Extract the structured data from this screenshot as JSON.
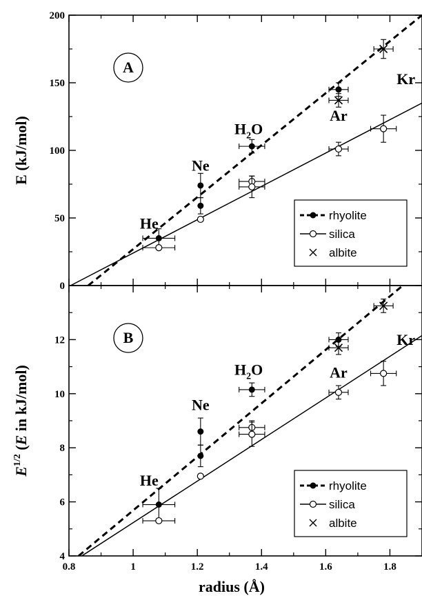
{
  "chart_data": [
    {
      "type": "scatter",
      "panel_label": "A",
      "ylabel": "E  (kJ/mol)",
      "xlim": [
        0.8,
        1.9
      ],
      "ylim": [
        0,
        200
      ],
      "yticks": [
        "0",
        "50",
        "100",
        "150",
        "200"
      ],
      "series": [
        {
          "name": "rhyolite",
          "marker": "filled-circle",
          "line": "dashed",
          "points": [
            {
              "x": 1.08,
              "y": 35,
              "xerr": 0.05,
              "yerr": 7
            },
            {
              "x": 1.21,
              "y": 59,
              "xerr": 0.0,
              "yerr": 6
            },
            {
              "x": 1.21,
              "y": 74,
              "xerr": 0.0,
              "yerr": 9
            },
            {
              "x": 1.37,
              "y": 103,
              "xerr": 0.04,
              "yerr": 5
            },
            {
              "x": 1.64,
              "y": 145,
              "xerr": 0.03,
              "yerr": 5
            }
          ],
          "fit": [
            [
              0.86,
              0
            ],
            [
              1.9,
              200
            ]
          ]
        },
        {
          "name": "silica",
          "marker": "open-circle",
          "line": "solid",
          "points": [
            {
              "x": 1.08,
              "y": 28,
              "xerr": 0.05,
              "yerr": 0
            },
            {
              "x": 1.21,
              "y": 49,
              "xerr": 0.0,
              "yerr": 1
            },
            {
              "x": 1.37,
              "y": 77,
              "xerr": 0.04,
              "yerr": 4
            },
            {
              "x": 1.37,
              "y": 73,
              "xerr": 0.04,
              "yerr": 8
            },
            {
              "x": 1.64,
              "y": 101,
              "xerr": 0.03,
              "yerr": 5
            },
            {
              "x": 1.78,
              "y": 116,
              "xerr": 0.04,
              "yerr": 10
            }
          ],
          "fit": [
            [
              0.805,
              0
            ],
            [
              1.9,
              135
            ]
          ]
        },
        {
          "name": "albite",
          "marker": "cross",
          "line": "none",
          "points": [
            {
              "x": 1.64,
              "y": 137,
              "xerr": 0.03,
              "yerr": 5
            },
            {
              "x": 1.78,
              "y": 175,
              "xerr": 0.03,
              "yerr": 7
            }
          ]
        }
      ],
      "annotations": [
        {
          "text": "He",
          "x": 1.05,
          "y": 42
        },
        {
          "text": "Ne",
          "x": 1.21,
          "y": 85
        },
        {
          "text": "H",
          "sub": "2",
          "suffix": "O",
          "x": 1.36,
          "y": 112
        },
        {
          "text": "Ar",
          "x": 1.64,
          "y": 122
        },
        {
          "text": "Kr",
          "x": 1.85,
          "y": 149
        }
      ],
      "legend": {
        "position": "lower-right",
        "entries": [
          "rhyolite",
          "silica",
          "albite"
        ]
      }
    },
    {
      "type": "scatter",
      "panel_label": "B",
      "ylabel_prefix": "E",
      "ylabel_sup": "1/2",
      "ylabel_rest": " (",
      "ylabel_e": "E",
      "ylabel_tail": " in  kJ/mol)",
      "xlabel": "radius  (Å)",
      "xlim": [
        0.8,
        1.9
      ],
      "ylim": [
        4,
        14
      ],
      "xticks": [
        "0.8",
        "1",
        "1.2",
        "1.4",
        "1.6",
        "1.8"
      ],
      "yticks": [
        "4",
        "6",
        "8",
        "10",
        "12"
      ],
      "series": [
        {
          "name": "rhyolite",
          "marker": "filled-circle",
          "line": "dashed",
          "points": [
            {
              "x": 1.08,
              "y": 5.9,
              "xerr": 0.05,
              "yerr": 0.6
            },
            {
              "x": 1.21,
              "y": 7.7,
              "xerr": 0.0,
              "yerr": 0.4
            },
            {
              "x": 1.21,
              "y": 8.6,
              "xerr": 0.0,
              "yerr": 0.5
            },
            {
              "x": 1.37,
              "y": 10.15,
              "xerr": 0.04,
              "yerr": 0.25
            },
            {
              "x": 1.64,
              "y": 12.0,
              "xerr": 0.03,
              "yerr": 0.25
            }
          ],
          "fit": [
            [
              0.83,
              4
            ],
            [
              1.84,
              14
            ]
          ]
        },
        {
          "name": "silica",
          "marker": "open-circle",
          "line": "solid",
          "points": [
            {
              "x": 1.08,
              "y": 5.3,
              "xerr": 0.05,
              "yerr": 0
            },
            {
              "x": 1.21,
              "y": 6.95,
              "xerr": 0.0,
              "yerr": 0.05
            },
            {
              "x": 1.37,
              "y": 8.75,
              "xerr": 0.04,
              "yerr": 0.25
            },
            {
              "x": 1.37,
              "y": 8.5,
              "xerr": 0.04,
              "yerr": 0.45
            },
            {
              "x": 1.64,
              "y": 10.05,
              "xerr": 0.03,
              "yerr": 0.25
            },
            {
              "x": 1.78,
              "y": 10.75,
              "xerr": 0.04,
              "yerr": 0.45
            }
          ],
          "fit": [
            [
              0.84,
              4
            ],
            [
              1.9,
              12.15
            ]
          ]
        },
        {
          "name": "albite",
          "marker": "cross",
          "line": "none",
          "points": [
            {
              "x": 1.64,
              "y": 11.7,
              "xerr": 0.03,
              "yerr": 0.25
            },
            {
              "x": 1.78,
              "y": 13.25,
              "xerr": 0.03,
              "yerr": 0.25
            }
          ]
        }
      ],
      "annotations": [
        {
          "text": "He",
          "x": 1.05,
          "y": 6.6
        },
        {
          "text": "Ne",
          "x": 1.21,
          "y": 9.4
        },
        {
          "text": "H",
          "sub": "2",
          "suffix": "O",
          "x": 1.36,
          "y": 10.7
        },
        {
          "text": "Ar",
          "x": 1.64,
          "y": 10.6
        },
        {
          "text": "Kr",
          "x": 1.85,
          "y": 11.8
        }
      ],
      "legend": {
        "position": "lower-right",
        "entries": [
          "rhyolite",
          "silica",
          "albite"
        ]
      }
    }
  ]
}
